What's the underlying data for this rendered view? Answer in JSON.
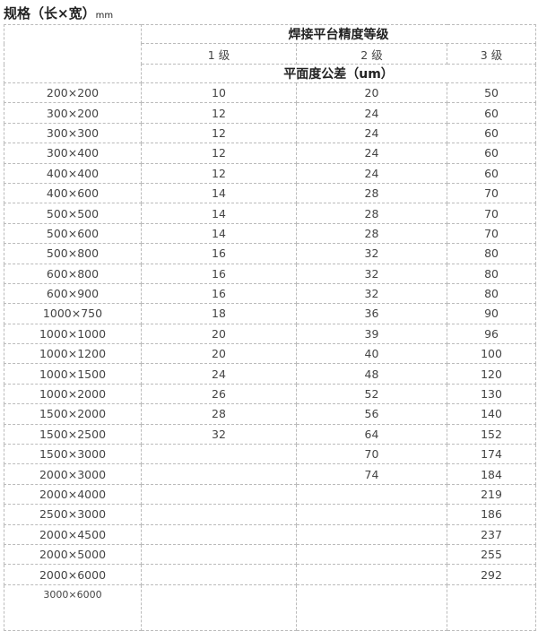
{
  "title": "规格（长×宽）",
  "title_unit": "mm",
  "header": {
    "group": "焊接平台精度等级",
    "grades": [
      "1 级",
      "2 级",
      "3 级"
    ],
    "subheader": "平面度公差（um）"
  },
  "rows": [
    {
      "size": "200×200",
      "g1": "10",
      "g2": "20",
      "g3": "50"
    },
    {
      "size": "300×200",
      "g1": "12",
      "g2": "24",
      "g3": "60"
    },
    {
      "size": "300×300",
      "g1": "12",
      "g2": "24",
      "g3": "60"
    },
    {
      "size": "300×400",
      "g1": "12",
      "g2": "24",
      "g3": "60"
    },
    {
      "size": "400×400",
      "g1": "12",
      "g2": "24",
      "g3": "60"
    },
    {
      "size": "400×600",
      "g1": "14",
      "g2": "28",
      "g3": "70"
    },
    {
      "size": "500×500",
      "g1": "14",
      "g2": "28",
      "g3": "70"
    },
    {
      "size": "500×600",
      "g1": "14",
      "g2": "28",
      "g3": "70"
    },
    {
      "size": "500×800",
      "g1": "16",
      "g2": "32",
      "g3": "80"
    },
    {
      "size": "600×800",
      "g1": "16",
      "g2": "32",
      "g3": "80"
    },
    {
      "size": "600×900",
      "g1": "16",
      "g2": "32",
      "g3": "80"
    },
    {
      "size": "1000×750",
      "g1": "18",
      "g2": "36",
      "g3": "90"
    },
    {
      "size": "1000×1000",
      "g1": "20",
      "g2": "39",
      "g3": "96"
    },
    {
      "size": "1000×1200",
      "g1": "20",
      "g2": "40",
      "g3": "100"
    },
    {
      "size": "1000×1500",
      "g1": "24",
      "g2": "48",
      "g3": "120"
    },
    {
      "size": "1000×2000",
      "g1": "26",
      "g2": "52",
      "g3": "130"
    },
    {
      "size": "1500×2000",
      "g1": "28",
      "g2": "56",
      "g3": "140"
    },
    {
      "size": "1500×2500",
      "g1": "32",
      "g2": "64",
      "g3": "152"
    },
    {
      "size": "1500×3000",
      "g1": "",
      "g2": "70",
      "g3": "174"
    },
    {
      "size": "2000×3000",
      "g1": "",
      "g2": "74",
      "g3": "184"
    },
    {
      "size": "2000×4000",
      "g1": "",
      "g2": "",
      "g3": "219"
    },
    {
      "size": "2500×3000",
      "g1": "",
      "g2": "",
      "g3": "186"
    },
    {
      "size": "2000×4500",
      "g1": "",
      "g2": "",
      "g3": "237"
    },
    {
      "size": "2000×5000",
      "g1": "",
      "g2": "",
      "g3": "255"
    },
    {
      "size": "2000×6000",
      "g1": "",
      "g2": "",
      "g3": "292"
    },
    {
      "size": "3000×6000",
      "g1": "",
      "g2": "",
      "g3": ""
    }
  ]
}
